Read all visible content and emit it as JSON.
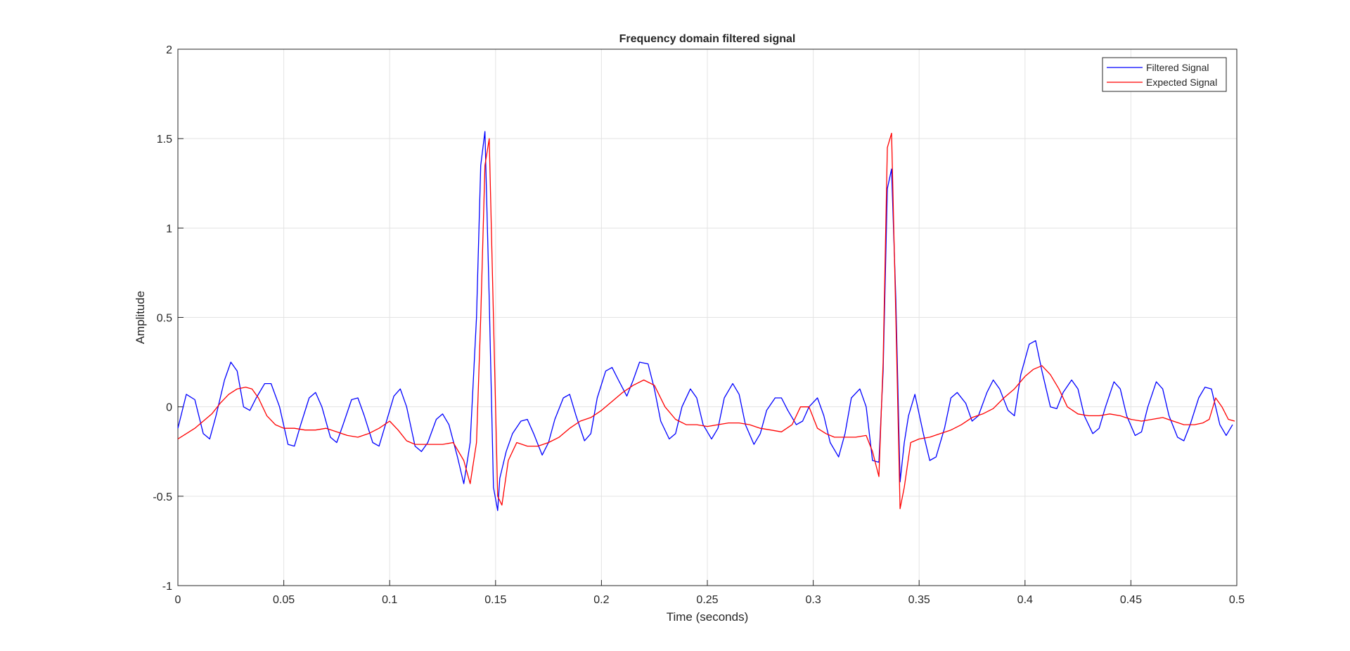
{
  "chart_data": {
    "type": "line",
    "title": "Frequency domain filtered signal",
    "xlabel": "Time (seconds)",
    "ylabel": "Amplitude",
    "xlim": [
      0,
      0.5
    ],
    "ylim": [
      -1,
      2
    ],
    "xticks": [
      0,
      0.05,
      0.1,
      0.15,
      0.2,
      0.25,
      0.3,
      0.35,
      0.4,
      0.45,
      0.5
    ],
    "xtick_labels": [
      "0",
      "0.05",
      "0.1",
      "0.15",
      "0.2",
      "0.25",
      "0.3",
      "0.35",
      "0.4",
      "0.45",
      "0.5"
    ],
    "yticks": [
      -1,
      -0.5,
      0,
      0.5,
      1,
      1.5,
      2
    ],
    "ytick_labels": [
      "-1",
      "-0.5",
      "0",
      "0.5",
      "1",
      "1.5",
      "2"
    ],
    "grid": true,
    "legend_position": "top-right",
    "series": [
      {
        "name": "Filtered Signal",
        "color": "#0000ff",
        "x": [
          0,
          0.004,
          0.008,
          0.012,
          0.015,
          0.018,
          0.022,
          0.025,
          0.028,
          0.031,
          0.034,
          0.037,
          0.041,
          0.044,
          0.048,
          0.052,
          0.055,
          0.058,
          0.062,
          0.065,
          0.068,
          0.072,
          0.075,
          0.078,
          0.082,
          0.085,
          0.088,
          0.092,
          0.095,
          0.098,
          0.102,
          0.105,
          0.108,
          0.112,
          0.115,
          0.118,
          0.122,
          0.125,
          0.128,
          0.132,
          0.135,
          0.138,
          0.141,
          0.143,
          0.145,
          0.147,
          0.149,
          0.151,
          0.152,
          0.155,
          0.158,
          0.162,
          0.165,
          0.168,
          0.172,
          0.175,
          0.178,
          0.182,
          0.185,
          0.188,
          0.192,
          0.195,
          0.198,
          0.202,
          0.205,
          0.208,
          0.212,
          0.215,
          0.218,
          0.222,
          0.225,
          0.228,
          0.232,
          0.235,
          0.238,
          0.242,
          0.245,
          0.248,
          0.252,
          0.255,
          0.258,
          0.262,
          0.265,
          0.268,
          0.272,
          0.275,
          0.278,
          0.282,
          0.285,
          0.288,
          0.292,
          0.295,
          0.298,
          0.302,
          0.305,
          0.308,
          0.312,
          0.315,
          0.318,
          0.322,
          0.325,
          0.328,
          0.331,
          0.333,
          0.335,
          0.337,
          0.339,
          0.341,
          0.343,
          0.345,
          0.348,
          0.352,
          0.355,
          0.358,
          0.362,
          0.365,
          0.368,
          0.372,
          0.375,
          0.378,
          0.382,
          0.385,
          0.388,
          0.392,
          0.395,
          0.398,
          0.402,
          0.405,
          0.408,
          0.412,
          0.415,
          0.418,
          0.422,
          0.425,
          0.428,
          0.432,
          0.435,
          0.438,
          0.442,
          0.445,
          0.448,
          0.452,
          0.455,
          0.458,
          0.462,
          0.465,
          0.468,
          0.472,
          0.475,
          0.478,
          0.482,
          0.485,
          0.488,
          0.492,
          0.495,
          0.498
        ],
        "y": [
          -0.12,
          0.07,
          0.04,
          -0.15,
          -0.18,
          -0.05,
          0.15,
          0.25,
          0.2,
          0.0,
          -0.02,
          0.05,
          0.13,
          0.13,
          0.0,
          -0.21,
          -0.22,
          -0.1,
          0.05,
          0.08,
          0.0,
          -0.17,
          -0.2,
          -0.1,
          0.04,
          0.05,
          -0.05,
          -0.2,
          -0.22,
          -0.1,
          0.06,
          0.1,
          0.0,
          -0.22,
          -0.25,
          -0.2,
          -0.07,
          -0.04,
          -0.1,
          -0.28,
          -0.43,
          -0.2,
          0.5,
          1.35,
          1.54,
          0.6,
          -0.45,
          -0.58,
          -0.4,
          -0.25,
          -0.15,
          -0.08,
          -0.07,
          -0.15,
          -0.27,
          -0.2,
          -0.07,
          0.05,
          0.07,
          -0.05,
          -0.19,
          -0.15,
          0.05,
          0.2,
          0.22,
          0.15,
          0.06,
          0.15,
          0.25,
          0.24,
          0.1,
          -0.08,
          -0.18,
          -0.15,
          0.0,
          0.1,
          0.05,
          -0.1,
          -0.18,
          -0.12,
          0.05,
          0.13,
          0.07,
          -0.1,
          -0.21,
          -0.15,
          -0.02,
          0.05,
          0.05,
          -0.02,
          -0.1,
          -0.08,
          0.0,
          0.05,
          -0.05,
          -0.2,
          -0.28,
          -0.15,
          0.05,
          0.1,
          0.0,
          -0.3,
          -0.31,
          0.2,
          1.22,
          1.33,
          0.6,
          -0.42,
          -0.2,
          -0.05,
          0.07,
          -0.15,
          -0.3,
          -0.28,
          -0.12,
          0.05,
          0.08,
          0.02,
          -0.08,
          -0.05,
          0.08,
          0.15,
          0.1,
          -0.02,
          -0.05,
          0.18,
          0.35,
          0.37,
          0.2,
          0.0,
          -0.01,
          0.08,
          0.15,
          0.1,
          -0.05,
          -0.15,
          -0.12,
          0.0,
          0.14,
          0.1,
          -0.05,
          -0.16,
          -0.14,
          0.0,
          0.14,
          0.1,
          -0.05,
          -0.17,
          -0.19,
          -0.1,
          0.05,
          0.11,
          0.1,
          -0.1,
          -0.16,
          -0.1
        ]
      },
      {
        "name": "Expected Signal",
        "color": "#ff0000",
        "x": [
          0,
          0.004,
          0.008,
          0.012,
          0.016,
          0.02,
          0.024,
          0.028,
          0.032,
          0.035,
          0.038,
          0.042,
          0.046,
          0.05,
          0.055,
          0.06,
          0.065,
          0.07,
          0.075,
          0.08,
          0.085,
          0.09,
          0.095,
          0.1,
          0.104,
          0.108,
          0.112,
          0.116,
          0.12,
          0.125,
          0.13,
          0.135,
          0.138,
          0.141,
          0.143,
          0.145,
          0.147,
          0.149,
          0.151,
          0.153,
          0.156,
          0.16,
          0.165,
          0.17,
          0.175,
          0.18,
          0.185,
          0.19,
          0.195,
          0.2,
          0.205,
          0.21,
          0.215,
          0.22,
          0.225,
          0.23,
          0.235,
          0.24,
          0.245,
          0.25,
          0.255,
          0.26,
          0.265,
          0.27,
          0.275,
          0.28,
          0.285,
          0.29,
          0.294,
          0.298,
          0.302,
          0.306,
          0.31,
          0.315,
          0.32,
          0.325,
          0.328,
          0.331,
          0.333,
          0.335,
          0.337,
          0.339,
          0.341,
          0.343,
          0.346,
          0.35,
          0.355,
          0.36,
          0.365,
          0.37,
          0.375,
          0.38,
          0.385,
          0.39,
          0.395,
          0.4,
          0.404,
          0.408,
          0.412,
          0.416,
          0.42,
          0.425,
          0.43,
          0.435,
          0.44,
          0.445,
          0.45,
          0.455,
          0.46,
          0.465,
          0.47,
          0.475,
          0.48,
          0.484,
          0.487,
          0.49,
          0.493,
          0.496,
          0.499
        ],
        "y": [
          -0.18,
          -0.15,
          -0.12,
          -0.08,
          -0.04,
          0.02,
          0.07,
          0.1,
          0.11,
          0.1,
          0.05,
          -0.05,
          -0.1,
          -0.12,
          -0.12,
          -0.13,
          -0.13,
          -0.12,
          -0.14,
          -0.16,
          -0.17,
          -0.15,
          -0.12,
          -0.08,
          -0.13,
          -0.19,
          -0.21,
          -0.21,
          -0.21,
          -0.21,
          -0.2,
          -0.3,
          -0.43,
          -0.2,
          0.5,
          1.35,
          1.5,
          0.5,
          -0.5,
          -0.55,
          -0.3,
          -0.2,
          -0.22,
          -0.22,
          -0.2,
          -0.17,
          -0.12,
          -0.08,
          -0.06,
          -0.02,
          0.03,
          0.08,
          0.12,
          0.15,
          0.12,
          0.0,
          -0.07,
          -0.1,
          -0.1,
          -0.11,
          -0.1,
          -0.09,
          -0.09,
          -0.1,
          -0.12,
          -0.13,
          -0.14,
          -0.1,
          0.0,
          0.0,
          -0.12,
          -0.15,
          -0.17,
          -0.17,
          -0.17,
          -0.16,
          -0.25,
          -0.39,
          0.25,
          1.45,
          1.53,
          0.5,
          -0.57,
          -0.45,
          -0.2,
          -0.18,
          -0.17,
          -0.15,
          -0.13,
          -0.1,
          -0.06,
          -0.04,
          -0.01,
          0.05,
          0.1,
          0.17,
          0.21,
          0.23,
          0.18,
          0.1,
          0.0,
          -0.04,
          -0.05,
          -0.05,
          -0.04,
          -0.05,
          -0.07,
          -0.08,
          -0.07,
          -0.06,
          -0.08,
          -0.1,
          -0.1,
          -0.09,
          -0.07,
          0.05,
          0.0,
          -0.07,
          -0.08
        ]
      }
    ]
  }
}
